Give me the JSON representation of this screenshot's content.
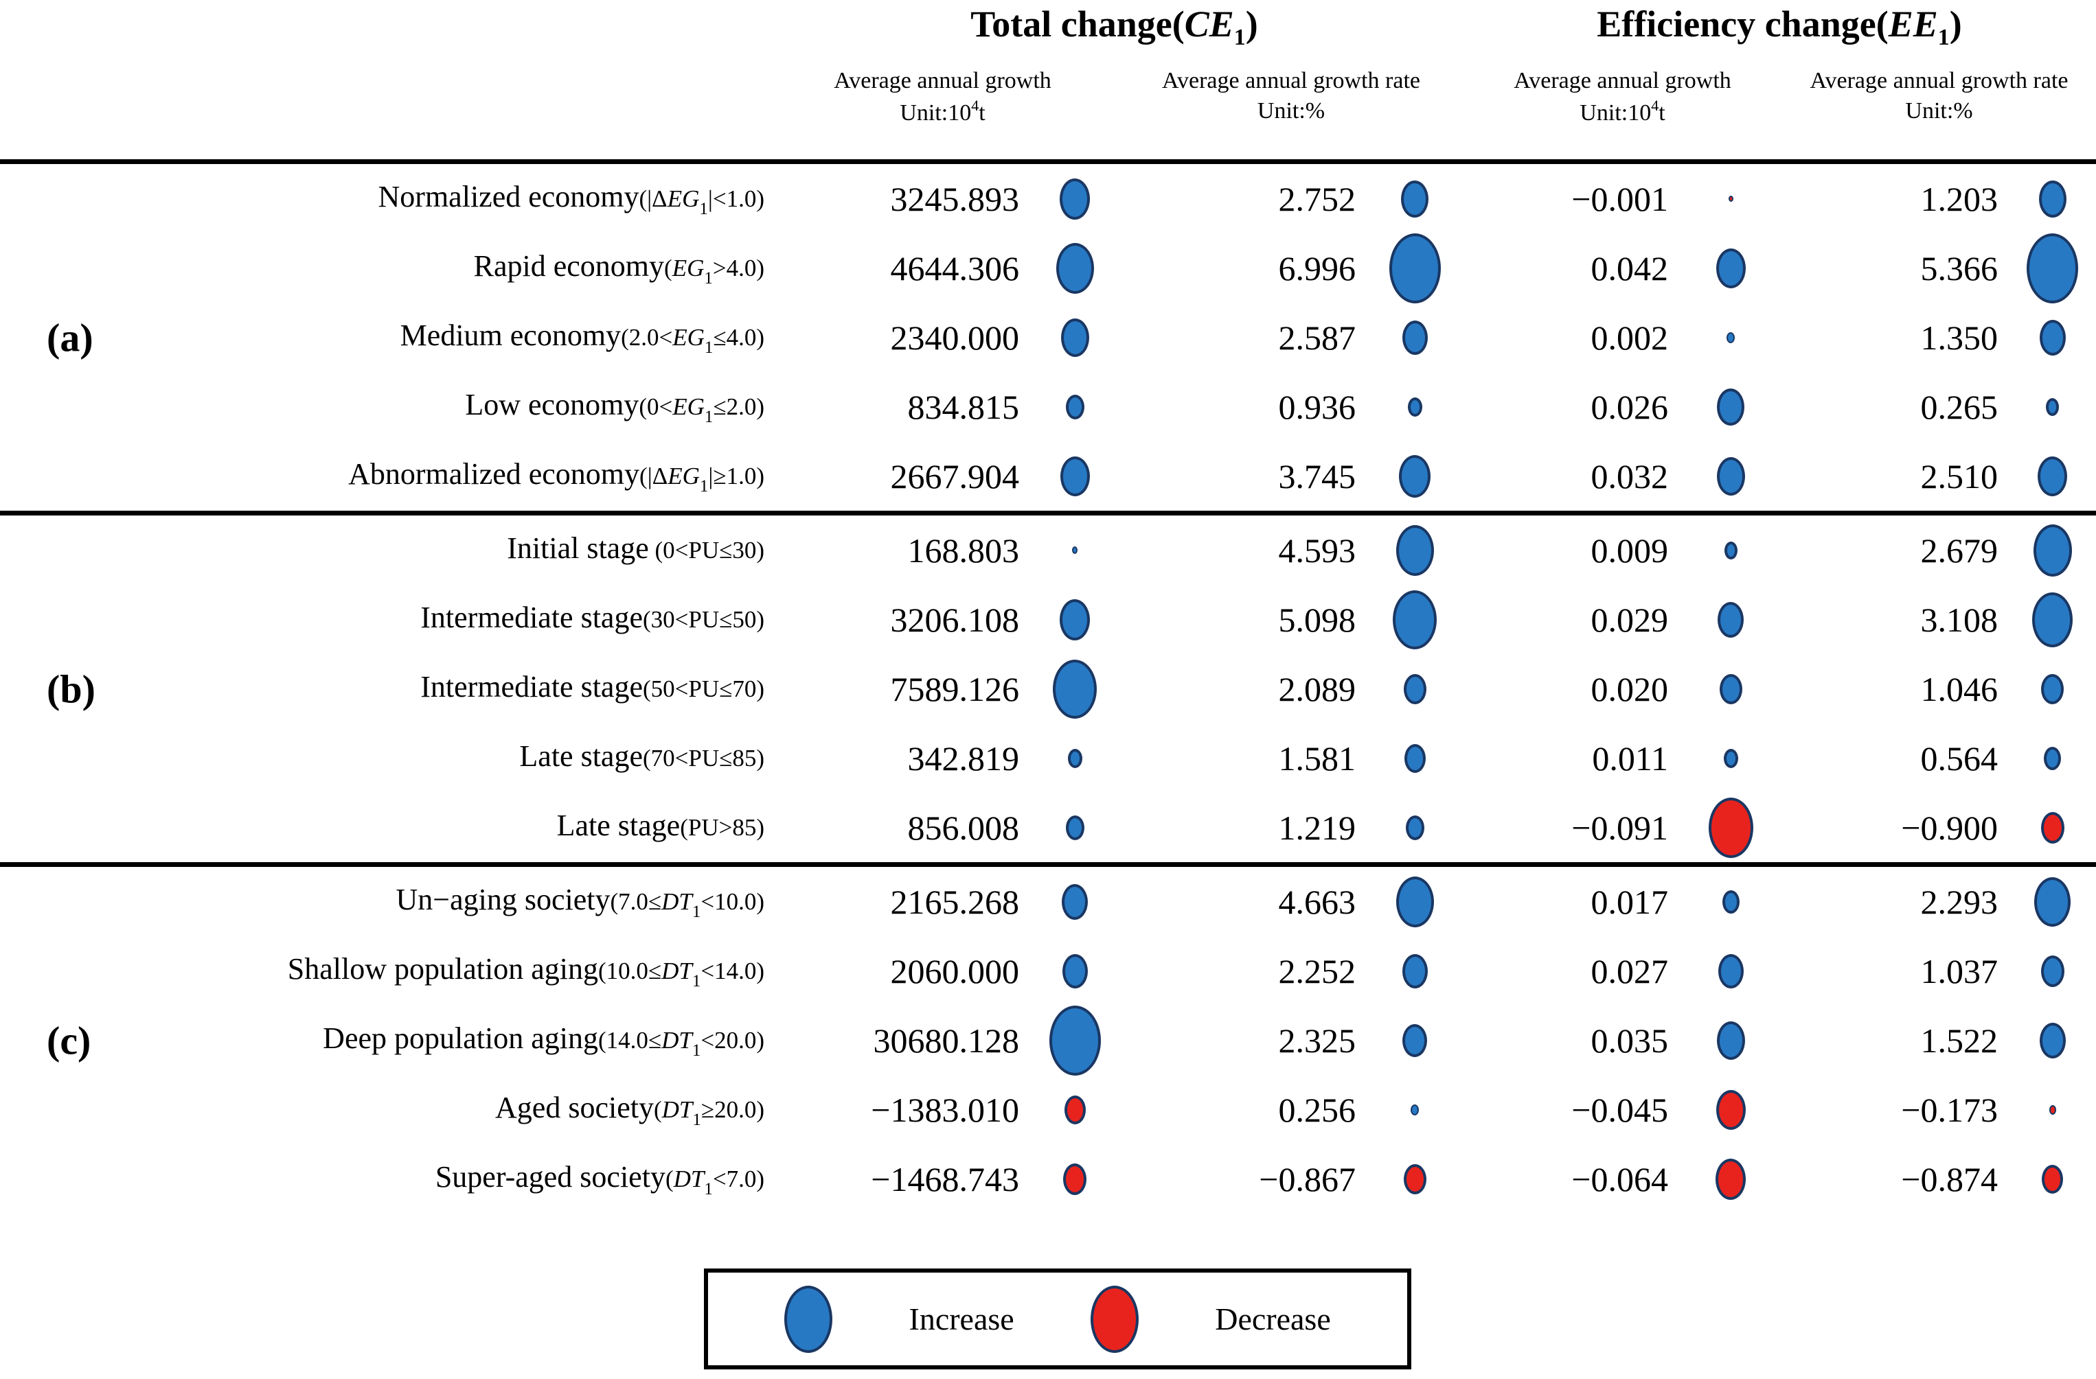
{
  "figure": {
    "group_headers": [
      {
        "pre": "Total change(",
        "var": "CE",
        "sub": "1",
        "post": ")"
      },
      {
        "pre": "Efficiency change(",
        "var": "EE",
        "sub": "1",
        "post": ")"
      }
    ],
    "col_headers": [
      {
        "line1": "Average annual growth",
        "unit_pre": "Unit:10",
        "unit_sup": "4",
        "unit_post": "t"
      },
      {
        "line1": "Average annual growth rate",
        "unit_pre": "Unit:%",
        "unit_sup": "",
        "unit_post": ""
      },
      {
        "line1": "Average annual growth",
        "unit_pre": "Unit:10",
        "unit_sup": "4",
        "unit_post": "t"
      },
      {
        "line1": "Average annual growth rate",
        "unit_pre": "Unit:%",
        "unit_sup": "",
        "unit_post": ""
      }
    ],
    "colors": {
      "increase": "#2779c4",
      "decrease": "#e8231e",
      "bubble_border": "#1a3763"
    },
    "legend": {
      "increase": "Increase",
      "decrease": "Decrease"
    },
    "sections": [
      {
        "marker": "(a)",
        "rows": [
          {
            "name": "Normalized economy",
            "cpre": "(|Δ",
            "cvar": "EG",
            "csub": "1",
            "cpost": "|<1.0)",
            "values": [
              {
                "v": "3245.893",
                "d": 60,
                "c": "inc"
              },
              {
                "v": "2.752",
                "d": 54,
                "c": "inc"
              },
              {
                "v": "−0.001",
                "d": 9,
                "c": "dec"
              },
              {
                "v": "1.203",
                "d": 54,
                "c": "inc"
              }
            ]
          },
          {
            "name": "Rapid economy",
            "cpre": "(",
            "cvar": "EG",
            "csub": "1",
            "cpost": ">4.0)",
            "values": [
              {
                "v": "4644.306",
                "d": 74,
                "c": "inc"
              },
              {
                "v": "6.996",
                "d": 102,
                "c": "inc"
              },
              {
                "v": "0.042",
                "d": 58,
                "c": "inc"
              },
              {
                "v": "5.366",
                "d": 102,
                "c": "inc"
              }
            ]
          },
          {
            "name": "Medium economy",
            "cpre": "(2.0<",
            "cvar": "EG",
            "csub": "1",
            "cpost": "≤4.0)",
            "values": [
              {
                "v": "2340.000",
                "d": 56,
                "c": "inc"
              },
              {
                "v": "2.587",
                "d": 50,
                "c": "inc"
              },
              {
                "v": "0.002",
                "d": 16,
                "c": "inc"
              },
              {
                "v": "1.350",
                "d": 52,
                "c": "inc"
              }
            ]
          },
          {
            "name": "Low economy",
            "cpre": "(0<",
            "cvar": "EG",
            "csub": "1",
            "cpost": "≤2.0)",
            "values": [
              {
                "v": "834.815",
                "d": 36,
                "c": "inc"
              },
              {
                "v": "0.936",
                "d": 28,
                "c": "inc"
              },
              {
                "v": "0.026",
                "d": 54,
                "c": "inc"
              },
              {
                "v": "0.265",
                "d": 26,
                "c": "inc"
              }
            ]
          },
          {
            "name": "Abnormalized economy",
            "cpre": "(|Δ",
            "cvar": "EG",
            "csub": "1",
            "cpost": "|≥1.0)",
            "values": [
              {
                "v": "2667.904",
                "d": 58,
                "c": "inc"
              },
              {
                "v": "3.745",
                "d": 62,
                "c": "inc"
              },
              {
                "v": "0.032",
                "d": 56,
                "c": "inc"
              },
              {
                "v": "2.510",
                "d": 58,
                "c": "inc"
              }
            ]
          }
        ]
      },
      {
        "marker": "(b)",
        "rows": [
          {
            "name": "Initial stage",
            "cpre": " (0<PU≤30)",
            "cvar": "",
            "csub": "",
            "cpost": "",
            "values": [
              {
                "v": "168.803",
                "d": 11,
                "c": "inc"
              },
              {
                "v": "4.593",
                "d": 74,
                "c": "inc"
              },
              {
                "v": "0.009",
                "d": 26,
                "c": "inc"
              },
              {
                "v": "2.679",
                "d": 76,
                "c": "inc"
              }
            ]
          },
          {
            "name": "Intermediate stage",
            "cpre": "(30<PU≤50)",
            "cvar": "",
            "csub": "",
            "cpost": "",
            "values": [
              {
                "v": "3206.108",
                "d": 60,
                "c": "inc"
              },
              {
                "v": "5.098",
                "d": 86,
                "c": "inc"
              },
              {
                "v": "0.029",
                "d": 52,
                "c": "inc"
              },
              {
                "v": "3.108",
                "d": 80,
                "c": "inc"
              }
            ]
          },
          {
            "name": "Intermediate stage",
            "cpre": "(50<PU≤70)",
            "cvar": "",
            "csub": "",
            "cpost": "",
            "values": [
              {
                "v": "7589.126",
                "d": 86,
                "c": "inc"
              },
              {
                "v": "2.089",
                "d": 44,
                "c": "inc"
              },
              {
                "v": "0.020",
                "d": 44,
                "c": "inc"
              },
              {
                "v": "1.046",
                "d": 44,
                "c": "inc"
              }
            ]
          },
          {
            "name": "Late stage",
            "cpre": "(70<PU≤85)",
            "cvar": "",
            "csub": "",
            "cpost": "",
            "values": [
              {
                "v": "342.819",
                "d": 28,
                "c": "inc"
              },
              {
                "v": "1.581",
                "d": 42,
                "c": "inc"
              },
              {
                "v": "0.011",
                "d": 28,
                "c": "inc"
              },
              {
                "v": "0.564",
                "d": 34,
                "c": "inc"
              }
            ]
          },
          {
            "name": "Late stage",
            "cpre": "(PU>85)",
            "cvar": "",
            "csub": "",
            "cpost": "",
            "values": [
              {
                "v": "856.008",
                "d": 36,
                "c": "inc"
              },
              {
                "v": "1.219",
                "d": 36,
                "c": "inc"
              },
              {
                "v": "−0.091",
                "d": 88,
                "c": "dec"
              },
              {
                "v": "−0.900",
                "d": 46,
                "c": "dec"
              }
            ]
          }
        ]
      },
      {
        "marker": "(c)",
        "rows": [
          {
            "name": "Un−aging society",
            "cpre": "(7.0≤",
            "cvar": "DT",
            "csub": "1",
            "cpost": "<10.0)",
            "values": [
              {
                "v": "2165.268",
                "d": 52,
                "c": "inc"
              },
              {
                "v": "4.663",
                "d": 74,
                "c": "inc"
              },
              {
                "v": "0.017",
                "d": 34,
                "c": "inc"
              },
              {
                "v": "2.293",
                "d": 72,
                "c": "inc"
              }
            ]
          },
          {
            "name": "Shallow population aging",
            "cpre": "(10.0≤",
            "cvar": "DT",
            "csub": "1",
            "cpost": "<14.0)",
            "values": [
              {
                "v": "2060.000",
                "d": 50,
                "c": "inc"
              },
              {
                "v": "2.252",
                "d": 50,
                "c": "inc"
              },
              {
                "v": "0.027",
                "d": 50,
                "c": "inc"
              },
              {
                "v": "1.037",
                "d": 46,
                "c": "inc"
              }
            ]
          },
          {
            "name": "Deep population aging",
            "cpre": "(14.0≤",
            "cvar": "DT",
            "csub": "1",
            "cpost": "<20.0)",
            "values": [
              {
                "v": "30680.128",
                "d": 102,
                "c": "inc"
              },
              {
                "v": "2.325",
                "d": 48,
                "c": "inc"
              },
              {
                "v": "0.035",
                "d": 56,
                "c": "inc"
              },
              {
                "v": "1.522",
                "d": 52,
                "c": "inc"
              }
            ]
          },
          {
            "name": "Aged society",
            "cpre": "(",
            "cvar": "DT",
            "csub": "1",
            "cpost": "≥20.0)",
            "values": [
              {
                "v": "−1383.010",
                "d": 42,
                "c": "dec"
              },
              {
                "v": "0.256",
                "d": 16,
                "c": "inc"
              },
              {
                "v": "−0.045",
                "d": 58,
                "c": "dec"
              },
              {
                "v": "−0.173",
                "d": 14,
                "c": "dec"
              }
            ]
          },
          {
            "name": "Super-aged society",
            "cpre": "(",
            "cvar": "DT",
            "csub": "1",
            "cpost": "<7.0)",
            "values": [
              {
                "v": "−1468.743",
                "d": 46,
                "c": "dec"
              },
              {
                "v": "−0.867",
                "d": 44,
                "c": "dec"
              },
              {
                "v": "−0.064",
                "d": 60,
                "c": "dec"
              },
              {
                "v": "−0.874",
                "d": 42,
                "c": "dec"
              }
            ]
          }
        ]
      }
    ]
  },
  "chart_data": {
    "type": "table",
    "subtype": "bubble-matrix",
    "title": "Total change(CE1) and Efficiency change(EE1) by economy, urbanization stage and aging group",
    "encoding": "bubble size proportional to |value|; blue bubble = Increase, red bubble = Decrease",
    "legend_position": "bottom",
    "groups": [
      {
        "id": "(a)",
        "rows": [
          0,
          1,
          2,
          3,
          4
        ]
      },
      {
        "id": "(b)",
        "rows": [
          5,
          6,
          7,
          8,
          9
        ]
      },
      {
        "id": "(c)",
        "rows": [
          10,
          11,
          12,
          13,
          14
        ]
      }
    ],
    "categories": [
      "Normalized economy(|ΔEG1|<1.0)",
      "Rapid economy(EG1>4.0)",
      "Medium economy(2.0<EG1≤4.0)",
      "Low economy(0<EG1≤2.0)",
      "Abnormalized economy(|ΔEG1|≥1.0)",
      "Initial stage (0<PU≤30)",
      "Intermediate stage(30<PU≤50)",
      "Intermediate stage(50<PU≤70)",
      "Late stage(70<PU≤85)",
      "Late stage(PU>85)",
      "Un−aging society(7.0≤DT1<10.0)",
      "Shallow population aging(10.0≤DT1<14.0)",
      "Deep population aging(14.0≤DT1<20.0)",
      "Aged society(DT1≥20.0)",
      "Super-aged society(DT1<7.0)"
    ],
    "series": [
      {
        "name": "Total change(CE1) Average annual growth Unit:10^4t",
        "values": [
          3245.893,
          4644.306,
          2340.0,
          834.815,
          2667.904,
          168.803,
          3206.108,
          7589.126,
          342.819,
          856.008,
          2165.268,
          2060.0,
          30680.128,
          -1383.01,
          -1468.743
        ]
      },
      {
        "name": "Total change(CE1) Average annual growth rate Unit:%",
        "values": [
          2.752,
          6.996,
          2.587,
          0.936,
          3.745,
          4.593,
          5.098,
          2.089,
          1.581,
          1.219,
          4.663,
          2.252,
          2.325,
          0.256,
          -0.867
        ]
      },
      {
        "name": "Efficiency change(EE1) Average annual growth Unit:10^4t",
        "values": [
          -0.001,
          0.042,
          0.002,
          0.026,
          0.032,
          0.009,
          0.029,
          0.02,
          0.011,
          -0.091,
          0.017,
          0.027,
          0.035,
          -0.045,
          -0.064
        ]
      },
      {
        "name": "Efficiency change(EE1) Average annual growth rate Unit:%",
        "values": [
          1.203,
          5.366,
          1.35,
          0.265,
          2.51,
          2.679,
          3.108,
          1.046,
          0.564,
          -0.9,
          2.293,
          1.037,
          1.522,
          -0.173,
          -0.874
        ]
      }
    ]
  }
}
